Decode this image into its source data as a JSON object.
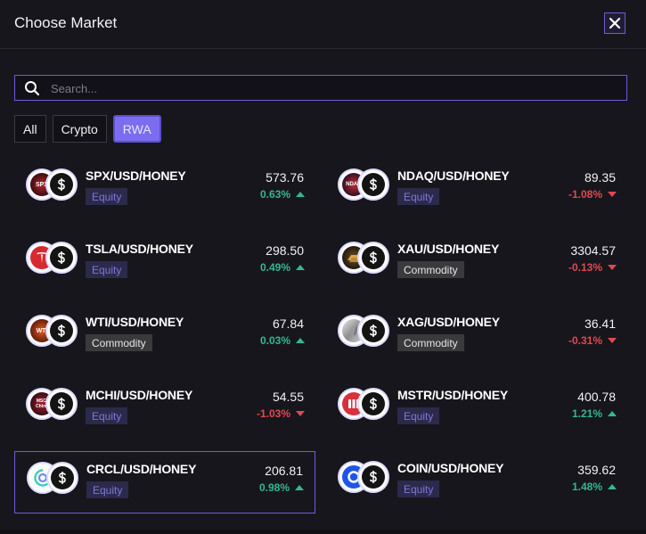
{
  "dialog": {
    "title": "Choose Market",
    "close_icon": "close-icon"
  },
  "search": {
    "placeholder": "Search...",
    "value": "",
    "icon": "search-icon"
  },
  "filters": [
    {
      "label": "All",
      "active": false
    },
    {
      "label": "Crypto",
      "active": false
    },
    {
      "label": "RWA",
      "active": true
    }
  ],
  "colors": {
    "accent": "#6b5fd6",
    "positive": "#34b88d",
    "negative": "#e0484f",
    "equity_tag_text": "#7f77de",
    "background": "#17161d"
  },
  "markets": [
    {
      "pair": "SPX/USD/HONEY",
      "tag": "Equity",
      "price": "573.76",
      "change": "0.63%",
      "direction": "up",
      "icon": "spx-icon",
      "icon_label": "SPX",
      "selected": false
    },
    {
      "pair": "NDAQ/USD/HONEY",
      "tag": "Equity",
      "price": "89.35",
      "change": "-1.08%",
      "direction": "down",
      "icon": "ndaq-icon",
      "icon_label": "NDAQ",
      "selected": false
    },
    {
      "pair": "TSLA/USD/HONEY",
      "tag": "Equity",
      "price": "298.50",
      "change": "0.49%",
      "direction": "up",
      "icon": "tesla-icon",
      "icon_label": "",
      "selected": false
    },
    {
      "pair": "XAU/USD/HONEY",
      "tag": "Commodity",
      "price": "3304.57",
      "change": "-0.13%",
      "direction": "down",
      "icon": "gold-icon",
      "icon_label": "",
      "selected": false
    },
    {
      "pair": "WTI/USD/HONEY",
      "tag": "Commodity",
      "price": "67.84",
      "change": "0.03%",
      "direction": "up",
      "icon": "wti-icon",
      "icon_label": "WTI",
      "selected": false
    },
    {
      "pair": "XAG/USD/HONEY",
      "tag": "Commodity",
      "price": "36.41",
      "change": "-0.31%",
      "direction": "down",
      "icon": "silver-icon",
      "icon_label": "",
      "selected": false
    },
    {
      "pair": "MCHI/USD/HONEY",
      "tag": "Equity",
      "price": "54.55",
      "change": "-1.03%",
      "direction": "down",
      "icon": "mchi-icon",
      "icon_label": "MSCI China",
      "selected": false
    },
    {
      "pair": "MSTR/USD/HONEY",
      "tag": "Equity",
      "price": "400.78",
      "change": "1.21%",
      "direction": "up",
      "icon": "mstr-icon",
      "icon_label": "",
      "selected": false
    },
    {
      "pair": "CRCL/USD/HONEY",
      "tag": "Equity",
      "price": "206.81",
      "change": "0.98%",
      "direction": "up",
      "icon": "crcl-icon",
      "icon_label": "",
      "selected": true
    },
    {
      "pair": "COIN/USD/HONEY",
      "tag": "Equity",
      "price": "359.62",
      "change": "1.48%",
      "direction": "up",
      "icon": "coinbase-icon",
      "icon_label": "",
      "selected": false
    }
  ],
  "quote_icon": "dollar-icon"
}
